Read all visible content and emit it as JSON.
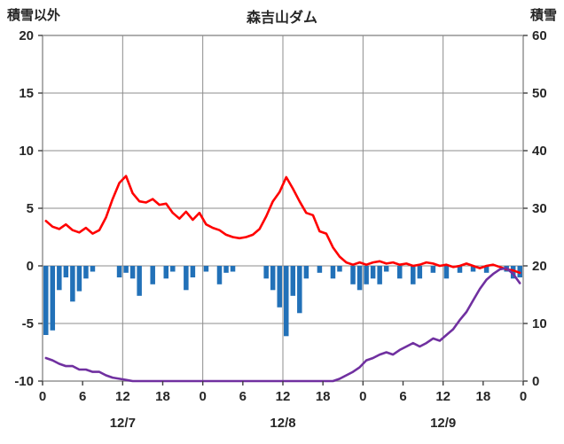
{
  "header": {
    "left_axis_title": "積雪以外",
    "chart_title": "森吉山ダム",
    "right_axis_title": "積雪"
  },
  "chart_data": {
    "type": "bar",
    "subtype": "combo-line-bar-line",
    "title": "森吉山ダム",
    "left_axis": {
      "label": "積雪以外",
      "min": -10,
      "max": 20,
      "ticks": [
        20,
        15,
        10,
        5,
        0,
        -5,
        -10
      ]
    },
    "right_axis": {
      "label": "積雪",
      "min": 0,
      "max": 60,
      "ticks": [
        60,
        50,
        40,
        30,
        20,
        10,
        0
      ]
    },
    "x_axis": {
      "total_hours": 72,
      "tick_interval_hours": 6,
      "tick_labels": [
        "0",
        "6",
        "12",
        "18",
        "0",
        "6",
        "12",
        "18",
        "0",
        "6",
        "12",
        "18",
        "0"
      ],
      "day_labels": [
        {
          "label": "12/7",
          "center_hour": 12
        },
        {
          "label": "12/8",
          "center_hour": 36
        },
        {
          "label": "12/9",
          "center_hour": 60
        }
      ],
      "gridline_hours": [
        12,
        24,
        36,
        48,
        60
      ]
    },
    "colors": {
      "temperature_line": "#ff0000",
      "precipitation_bars": "#2271b8",
      "snow_depth_line": "#7030a0",
      "grid": "#8c8c8c",
      "axis_text": "#262626"
    },
    "series": [
      {
        "name": "temperature",
        "type": "line",
        "axis": "left",
        "values": [
          3.9,
          3.4,
          3.2,
          3.6,
          3.1,
          2.9,
          3.3,
          2.8,
          3.1,
          4.2,
          5.8,
          7.2,
          7.8,
          6.3,
          5.6,
          5.5,
          5.8,
          5.3,
          5.4,
          4.6,
          4.1,
          4.7,
          4.0,
          4.6,
          3.6,
          3.3,
          3.1,
          2.7,
          2.5,
          2.4,
          2.5,
          2.7,
          3.2,
          4.3,
          5.6,
          6.4,
          7.7,
          6.7,
          5.6,
          4.6,
          4.4,
          3.0,
          2.8,
          1.6,
          0.8,
          0.3,
          0.1,
          0.3,
          0.1,
          0.3,
          0.4,
          0.2,
          0.3,
          0.1,
          0.2,
          0.0,
          0.1,
          0.3,
          0.2,
          0.0,
          0.1,
          -0.1,
          0.0,
          0.2,
          0.0,
          -0.2,
          0.0,
          0.1,
          -0.1,
          -0.3,
          -0.4,
          -0.6
        ]
      },
      {
        "name": "precipitation",
        "type": "bar",
        "axis": "left",
        "values": [
          -6.0,
          -5.6,
          -2.1,
          -1.0,
          -3.1,
          -2.2,
          -1.1,
          -0.5,
          0,
          0,
          0,
          -1.0,
          -0.6,
          -1.1,
          -2.6,
          0,
          -1.6,
          0,
          -1.1,
          -0.5,
          0,
          -2.1,
          -1.0,
          0,
          -0.5,
          0,
          -1.6,
          -0.6,
          -0.5,
          0,
          0,
          0,
          0,
          -1.1,
          -2.1,
          -3.6,
          -6.1,
          -2.6,
          -4.1,
          -1.1,
          0,
          -0.6,
          0,
          -1.1,
          -0.5,
          0,
          -1.6,
          -2.1,
          -1.6,
          -1.1,
          -1.6,
          -0.5,
          0,
          -1.1,
          0,
          -1.6,
          -1.1,
          0,
          -0.6,
          0,
          -1.1,
          0,
          -0.6,
          0,
          -0.5,
          0,
          -0.6,
          0,
          0,
          -0.5,
          -1.1,
          -1.0
        ]
      },
      {
        "name": "snow_depth",
        "type": "line",
        "axis": "right",
        "values": [
          4.0,
          3.6,
          3.0,
          2.6,
          2.6,
          2.0,
          2.0,
          1.6,
          1.6,
          1.0,
          0.6,
          0.4,
          0.2,
          0,
          0,
          0,
          0,
          0,
          0,
          0,
          0,
          0,
          0,
          0,
          0,
          0,
          0,
          0,
          0,
          0,
          0,
          0,
          0,
          0,
          0,
          0,
          0,
          0,
          0,
          0,
          0,
          0,
          0,
          0,
          0.4,
          1.0,
          1.6,
          2.4,
          3.6,
          4.0,
          4.6,
          5.0,
          4.6,
          5.4,
          6.0,
          6.6,
          6.0,
          6.6,
          7.4,
          7.0,
          8.0,
          9.0,
          10.6,
          12.0,
          14.0,
          16.0,
          17.6,
          18.6,
          19.4,
          19.6,
          18.6,
          17.0
        ]
      }
    ]
  }
}
